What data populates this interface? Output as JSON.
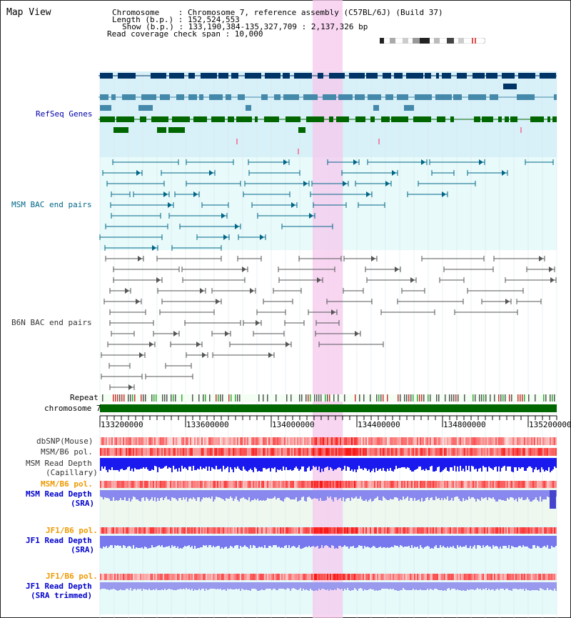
{
  "header": {
    "title": "Map View",
    "chromosome_line": "Chromosome    : Chromosome 7, reference assembly (C57BL/6J) (Build 37)",
    "length_line": "Length (b.p.) : 152,524,553",
    "show_line": "Show (b.p.) : 133,190,384-135,327,709 : 2,137,326 bp",
    "read_span_line": "Read coverage check span : 10,000"
  },
  "tracks": {
    "refseq": {
      "label": "RefSeq Genes",
      "color": "#0000aa"
    },
    "msm_bac": {
      "label": "MSM BAC end pairs",
      "color": "#006688"
    },
    "b6n_bac": {
      "label": "B6N BAC end pairs",
      "color": "#333333"
    },
    "repeat": {
      "label": "Repeat",
      "color": "#000000"
    },
    "chromosome": {
      "label": "chromosome 7",
      "color": "#000000"
    },
    "dbsnp": {
      "label": "dbSNP(Mouse)",
      "color": "#333333"
    },
    "msm_b6_pol_cap": {
      "label": "MSM/B6 pol.",
      "color": "#333333"
    },
    "msm_depth_cap": {
      "label": "MSM Read Depth",
      "sub": "(Capillary)",
      "color": "#333333"
    },
    "msm_b6_pol_sra": {
      "label": "MSM/B6 pol.",
      "color": "#ee9900"
    },
    "msm_depth_sra": {
      "label": "MSM Read Depth",
      "sub": "(SRA)",
      "color": "#0000cc"
    },
    "jf1_b6_pol": {
      "label": "JF1/B6 pol.",
      "color": "#ee9900"
    },
    "jf1_depth_sra": {
      "label": "JF1 Read Depth",
      "sub": "(SRA)",
      "color": "#0000cc"
    },
    "jf1_b6_pol_2": {
      "label": "JF1/B6 pol.",
      "color": "#ee9900"
    },
    "jf1_depth_trim": {
      "label": "JF1 Read Depth",
      "sub": "(SRA trimmed)",
      "color": "#0000cc"
    }
  },
  "axis": {
    "ticks": [
      "133200000",
      "133600000",
      "134000000",
      "134400000",
      "134800000",
      "135200000"
    ]
  },
  "colors": {
    "refseq_bg": "#d8f0f8",
    "bac_bg": "#e8fafa",
    "highlight": "#f8d8f0",
    "gene_dark": "#003366",
    "gene_mid": "#4488aa",
    "gene_green": "#006600",
    "msm_bac": "#006688",
    "b6n_bac": "#555555",
    "chromosome_bar": "#006600"
  }
}
